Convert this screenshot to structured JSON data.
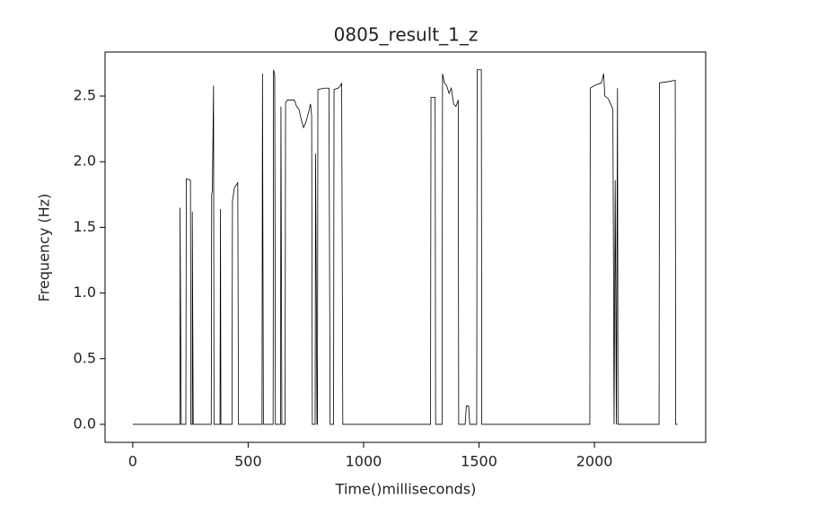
{
  "chart_data": {
    "type": "line",
    "title": "0805_result_1_z",
    "xlabel": "Time()milliseconds)",
    "ylabel": "Frequency (Hz)",
    "color": "#000000",
    "x": [
      0,
      205,
      205,
      210,
      230,
      232,
      250,
      252,
      258,
      258,
      262,
      340,
      342,
      345,
      350,
      352,
      378,
      380,
      382,
      430,
      432,
      440,
      455,
      458,
      560,
      562,
      566,
      608,
      610,
      615,
      618,
      640,
      642,
      646,
      660,
      662,
      670,
      700,
      710,
      720,
      730,
      740,
      750,
      765,
      770,
      775,
      778,
      790,
      792,
      798,
      800,
      802,
      830,
      850,
      855,
      870,
      872,
      890,
      900,
      905,
      910,
      1290,
      1292,
      1310,
      1312,
      1340,
      1342,
      1350,
      1360,
      1370,
      1380,
      1390,
      1400,
      1410,
      1412,
      1440,
      1445,
      1455,
      1460,
      1490,
      1492,
      1510,
      1512,
      1980,
      1982,
      2000,
      2030,
      2040,
      2045,
      2060,
      2070,
      2080,
      2085,
      2090,
      2095,
      2100,
      2102,
      2280,
      2282,
      2320,
      2350,
      2352,
      2360
    ],
    "values": [
      0,
      0,
      1.65,
      0,
      0,
      1.87,
      1.86,
      0,
      0,
      1.62,
      0,
      0,
      1.75,
      1.78,
      2.58,
      0,
      0,
      1.64,
      0,
      0,
      1.7,
      1.8,
      1.84,
      0,
      0,
      2.67,
      0,
      0,
      2.7,
      2.66,
      0,
      0,
      2.42,
      0,
      0,
      2.45,
      2.47,
      2.47,
      2.42,
      2.4,
      2.32,
      2.26,
      2.3,
      2.4,
      2.44,
      2.35,
      0,
      0,
      2.06,
      0,
      0,
      2.55,
      2.56,
      2.56,
      0,
      0,
      2.55,
      2.56,
      2.58,
      2.6,
      0,
      0,
      2.49,
      2.49,
      0,
      0,
      2.67,
      2.6,
      2.58,
      2.52,
      2.56,
      2.44,
      2.42,
      2.47,
      0,
      0,
      0.14,
      0.14,
      0,
      0,
      2.7,
      2.7,
      0,
      0,
      2.56,
      2.58,
      2.6,
      2.67,
      2.5,
      2.48,
      2.44,
      2.4,
      0,
      1.86,
      0,
      2.56,
      0,
      0,
      2.6,
      2.61,
      2.62,
      0,
      0
    ],
    "xlim": [
      -120,
      2482
    ],
    "xticks": [
      0,
      500,
      1000,
      1500,
      2000
    ],
    "ylim": [
      -0.137,
      2.835
    ],
    "yticks": [
      {
        "value": 0,
        "label": "0.0"
      },
      {
        "value": 0.5,
        "label": "0.5"
      },
      {
        "value": 1,
        "label": "1.0"
      },
      {
        "value": 1.5,
        "label": "1.5"
      },
      {
        "value": 2,
        "label": "2.0"
      },
      {
        "value": 2.5,
        "label": "2.5"
      }
    ]
  }
}
